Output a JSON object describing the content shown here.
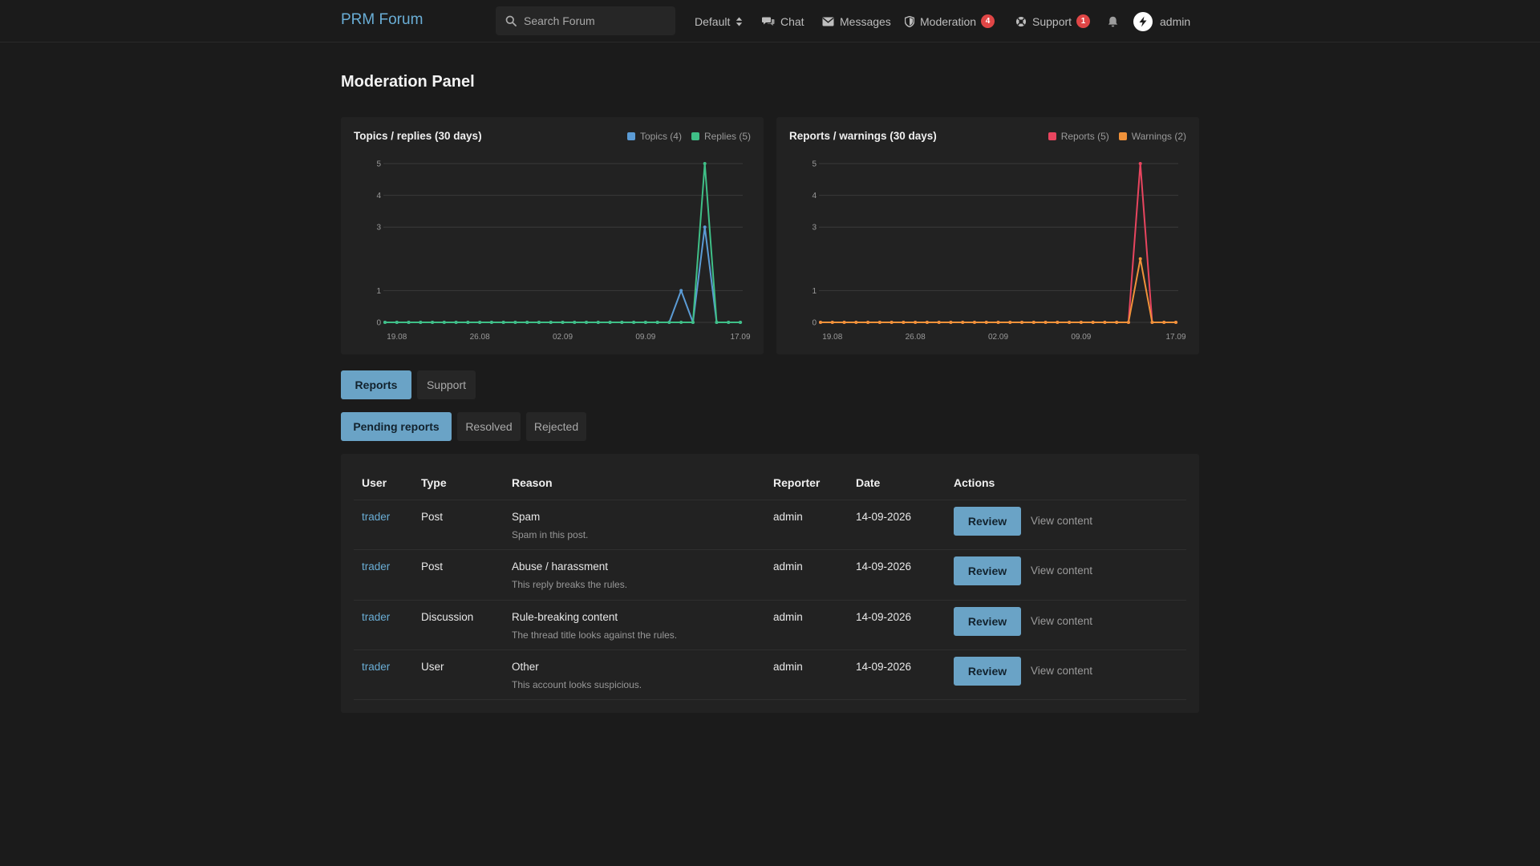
{
  "header": {
    "brand": "PRM Forum",
    "search_placeholder": "Search Forum",
    "theme_label": "Default",
    "chat_label": "Chat",
    "messages_label": "Messages",
    "moderation_label": "Moderation",
    "moderation_badge": "4",
    "support_label": "Support",
    "support_badge": "1",
    "username": "admin"
  },
  "page_title": "Moderation Panel",
  "chart_data": [
    {
      "type": "line",
      "title": "Topics / replies (30 days)",
      "x": [
        "18.08",
        "19.08",
        "20.08",
        "21.08",
        "22.08",
        "23.08",
        "24.08",
        "25.08",
        "26.08",
        "27.08",
        "28.08",
        "29.08",
        "30.08",
        "31.08",
        "01.09",
        "02.09",
        "03.09",
        "04.09",
        "05.09",
        "06.09",
        "07.09",
        "08.09",
        "09.09",
        "10.09",
        "11.09",
        "12.09",
        "13.09",
        "14.09",
        "15.09",
        "16.09",
        "17.09"
      ],
      "xtick_labels": [
        "19.08",
        "26.08",
        "02.09",
        "09.09",
        "17.09"
      ],
      "ytick_labels": [
        "0",
        "1",
        "3",
        "4",
        "5"
      ],
      "ylim": [
        0,
        5
      ],
      "series": [
        {
          "name": "Topics (4)",
          "color": "#5b9bd5",
          "values": [
            0,
            0,
            0,
            0,
            0,
            0,
            0,
            0,
            0,
            0,
            0,
            0,
            0,
            0,
            0,
            0,
            0,
            0,
            0,
            0,
            0,
            0,
            0,
            0,
            0,
            1,
            0,
            3,
            0,
            0,
            0
          ]
        },
        {
          "name": "Replies (5)",
          "color": "#3fbf87",
          "values": [
            0,
            0,
            0,
            0,
            0,
            0,
            0,
            0,
            0,
            0,
            0,
            0,
            0,
            0,
            0,
            0,
            0,
            0,
            0,
            0,
            0,
            0,
            0,
            0,
            0,
            0,
            0,
            5,
            0,
            0,
            0
          ]
        }
      ]
    },
    {
      "type": "line",
      "title": "Reports / warnings (30 days)",
      "x": [
        "18.08",
        "19.08",
        "20.08",
        "21.08",
        "22.08",
        "23.08",
        "24.08",
        "25.08",
        "26.08",
        "27.08",
        "28.08",
        "29.08",
        "30.08",
        "31.08",
        "01.09",
        "02.09",
        "03.09",
        "04.09",
        "05.09",
        "06.09",
        "07.09",
        "08.09",
        "09.09",
        "10.09",
        "11.09",
        "12.09",
        "13.09",
        "14.09",
        "15.09",
        "16.09",
        "17.09"
      ],
      "xtick_labels": [
        "19.08",
        "26.08",
        "02.09",
        "09.09",
        "17.09"
      ],
      "ytick_labels": [
        "0",
        "1",
        "3",
        "4",
        "5"
      ],
      "ylim": [
        0,
        5
      ],
      "series": [
        {
          "name": "Reports (5)",
          "color": "#e8455f",
          "values": [
            0,
            0,
            0,
            0,
            0,
            0,
            0,
            0,
            0,
            0,
            0,
            0,
            0,
            0,
            0,
            0,
            0,
            0,
            0,
            0,
            0,
            0,
            0,
            0,
            0,
            0,
            0,
            5,
            0,
            0,
            0
          ]
        },
        {
          "name": "Warnings (2)",
          "color": "#f0923a",
          "values": [
            0,
            0,
            0,
            0,
            0,
            0,
            0,
            0,
            0,
            0,
            0,
            0,
            0,
            0,
            0,
            0,
            0,
            0,
            0,
            0,
            0,
            0,
            0,
            0,
            0,
            0,
            0,
            2,
            0,
            0,
            0
          ]
        }
      ]
    }
  ],
  "tabs": {
    "reports": "Reports",
    "support": "Support"
  },
  "subtabs": {
    "pending": "Pending reports",
    "resolved": "Resolved",
    "rejected": "Rejected"
  },
  "table": {
    "headers": {
      "user": "User",
      "type": "Type",
      "reason": "Reason",
      "reporter": "Reporter",
      "date": "Date",
      "actions": "Actions"
    },
    "review_label": "Review",
    "view_label": "View content",
    "rows": [
      {
        "user": "trader",
        "type": "Post",
        "reason": "Spam",
        "note": "Spam in this post.",
        "reporter": "admin",
        "date": "14-09-2026"
      },
      {
        "user": "trader",
        "type": "Post",
        "reason": "Abuse / harassment",
        "note": "This reply breaks the rules.",
        "reporter": "admin",
        "date": "14-09-2026"
      },
      {
        "user": "trader",
        "type": "Discussion",
        "reason": "Rule-breaking content",
        "note": "The thread title looks against the rules.",
        "reporter": "admin",
        "date": "14-09-2026"
      },
      {
        "user": "trader",
        "type": "User",
        "reason": "Other",
        "note": "This account looks suspicious.",
        "reporter": "admin",
        "date": "14-09-2026"
      }
    ]
  }
}
